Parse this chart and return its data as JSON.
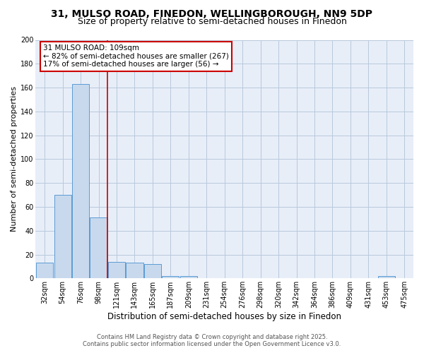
{
  "title1": "31, MULSO ROAD, FINEDON, WELLINGBOROUGH, NN9 5DP",
  "title2": "Size of property relative to semi-detached houses in Finedon",
  "xlabel": "Distribution of semi-detached houses by size in Finedon",
  "ylabel": "Number of semi-detached properties",
  "bin_labels": [
    "32sqm",
    "54sqm",
    "76sqm",
    "98sqm",
    "121sqm",
    "143sqm",
    "165sqm",
    "187sqm",
    "209sqm",
    "231sqm",
    "254sqm",
    "276sqm",
    "298sqm",
    "320sqm",
    "342sqm",
    "364sqm",
    "386sqm",
    "409sqm",
    "431sqm",
    "453sqm",
    "475sqm"
  ],
  "bar_values": [
    13,
    70,
    163,
    51,
    14,
    13,
    12,
    2,
    2,
    0,
    0,
    0,
    0,
    0,
    0,
    0,
    0,
    0,
    0,
    2,
    0
  ],
  "bar_color": "#c8d9ed",
  "bar_edge_color": "#5b9bd5",
  "vline_x": 3.5,
  "vertical_line_color": "#cc0000",
  "annotation_title": "31 MULSO ROAD: 109sqm",
  "annotation_line1": "← 82% of semi-detached houses are smaller (267)",
  "annotation_line2": "17% of semi-detached houses are larger (56) →",
  "annotation_box_color": "#ffffff",
  "annotation_box_edge": "#cc0000",
  "ylim": [
    0,
    200
  ],
  "yticks": [
    0,
    20,
    40,
    60,
    80,
    100,
    120,
    140,
    160,
    180,
    200
  ],
  "footer1": "Contains HM Land Registry data © Crown copyright and database right 2025.",
  "footer2": "Contains public sector information licensed under the Open Government Licence v3.0.",
  "bg_color": "#ffffff",
  "plot_bg_color": "#e8eef8",
  "grid_color": "#b8c8dc",
  "title1_fontsize": 10,
  "title2_fontsize": 9,
  "ylabel_fontsize": 8,
  "xlabel_fontsize": 8.5,
  "tick_fontsize": 7,
  "ann_fontsize": 7.5,
  "footer_fontsize": 6
}
